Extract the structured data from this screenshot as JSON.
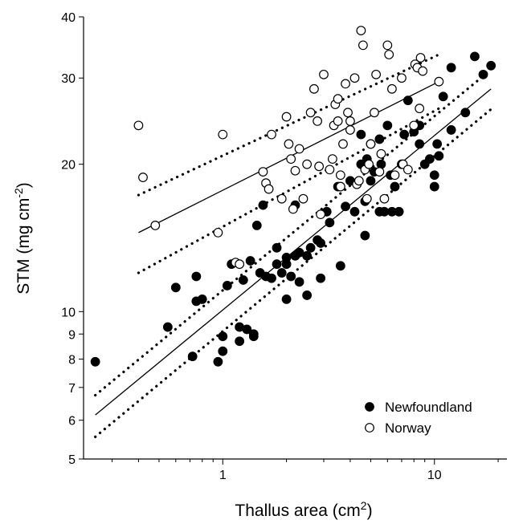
{
  "chart_data": {
    "type": "scatter",
    "title": "",
    "xlabel": {
      "base": "Thallus area (cm",
      "sup": "2",
      "tail": ")"
    },
    "ylabel": {
      "base": "STM (mg cm",
      "sup": "-2",
      "tail": ")"
    },
    "xscale": "log",
    "yscale": "log",
    "xlim": [
      0.22,
      22
    ],
    "ylim": [
      5,
      40
    ],
    "x_major_ticks": [
      {
        "value": 1,
        "label": "1"
      },
      {
        "value": 10,
        "label": "10"
      }
    ],
    "y_ticks": [
      {
        "value": 5,
        "label": "5"
      },
      {
        "value": 6,
        "label": "6"
      },
      {
        "value": 7,
        "label": "7"
      },
      {
        "value": 8,
        "label": "8"
      },
      {
        "value": 9,
        "label": "9"
      },
      {
        "value": 10,
        "label": "10"
      },
      {
        "value": 20,
        "label": "20"
      },
      {
        "value": 30,
        "label": "30"
      },
      {
        "value": 40,
        "label": "40"
      }
    ],
    "grid": false,
    "legend_position": "bottom-right",
    "series": [
      {
        "name": "Newfoundland",
        "marker": "filled-circle",
        "color": "#000000",
        "points": [
          [
            0.25,
            7.9
          ],
          [
            0.55,
            9.3
          ],
          [
            0.6,
            11.2
          ],
          [
            0.72,
            8.1
          ],
          [
            0.75,
            10.5
          ],
          [
            0.75,
            11.8
          ],
          [
            0.8,
            10.6
          ],
          [
            0.95,
            7.9
          ],
          [
            1.0,
            8.9
          ],
          [
            1.0,
            8.3
          ],
          [
            1.05,
            11.3
          ],
          [
            1.1,
            12.5
          ],
          [
            1.2,
            8.7
          ],
          [
            1.2,
            9.3
          ],
          [
            1.25,
            11.6
          ],
          [
            1.3,
            9.2
          ],
          [
            1.35,
            12.7
          ],
          [
            1.4,
            8.9
          ],
          [
            1.4,
            9.0
          ],
          [
            1.45,
            15.0
          ],
          [
            1.5,
            12.0
          ],
          [
            1.55,
            16.5
          ],
          [
            1.6,
            11.8
          ],
          [
            1.7,
            11.7
          ],
          [
            1.8,
            13.5
          ],
          [
            1.8,
            12.5
          ],
          [
            1.9,
            12.0
          ],
          [
            2.0,
            12.5
          ],
          [
            2.0,
            12.9
          ],
          [
            2.0,
            10.6
          ],
          [
            2.1,
            11.8
          ],
          [
            2.2,
            16.5
          ],
          [
            2.2,
            13.0
          ],
          [
            2.3,
            13.2
          ],
          [
            2.3,
            11.5
          ],
          [
            2.5,
            10.8
          ],
          [
            2.5,
            13.0
          ],
          [
            2.6,
            13.5
          ],
          [
            2.8,
            14.0
          ],
          [
            2.9,
            13.8
          ],
          [
            2.9,
            11.7
          ],
          [
            3.1,
            16.0
          ],
          [
            3.2,
            15.2
          ],
          [
            3.5,
            18.0
          ],
          [
            3.6,
            12.4
          ],
          [
            3.8,
            16.4
          ],
          [
            4.0,
            18.5
          ],
          [
            4.2,
            16.0
          ],
          [
            4.5,
            23.0
          ],
          [
            4.5,
            20.0
          ],
          [
            4.7,
            14.3
          ],
          [
            4.7,
            16.8
          ],
          [
            4.8,
            20.5
          ],
          [
            5.0,
            18.5
          ],
          [
            5.0,
            22.0
          ],
          [
            5.2,
            19.3
          ],
          [
            5.5,
            16.0
          ],
          [
            5.5,
            22.5
          ],
          [
            5.6,
            20.0
          ],
          [
            5.8,
            16.0
          ],
          [
            6.0,
            24.0
          ],
          [
            6.2,
            19.0
          ],
          [
            6.3,
            16.0
          ],
          [
            6.5,
            18.0
          ],
          [
            6.8,
            16.0
          ],
          [
            7.0,
            20.0
          ],
          [
            7.2,
            23.0
          ],
          [
            7.5,
            27.0
          ],
          [
            8.0,
            23.3
          ],
          [
            8.5,
            24.0
          ],
          [
            8.5,
            22.0
          ],
          [
            9.0,
            20.0
          ],
          [
            9.5,
            20.5
          ],
          [
            10.0,
            19.0
          ],
          [
            10.0,
            18.0
          ],
          [
            10.3,
            22.0
          ],
          [
            10.5,
            20.8
          ],
          [
            11.0,
            27.5
          ],
          [
            12.0,
            31.5
          ],
          [
            12.0,
            23.5
          ],
          [
            14.0,
            25.5
          ],
          [
            15.5,
            33.2
          ],
          [
            17.0,
            30.5
          ],
          [
            18.5,
            31.8
          ]
        ]
      },
      {
        "name": "Norway",
        "marker": "open-circle",
        "color": "#000000",
        "points": [
          [
            0.4,
            24.0
          ],
          [
            0.42,
            18.8
          ],
          [
            0.48,
            15.0
          ],
          [
            0.95,
            14.5
          ],
          [
            1.0,
            23.0
          ],
          [
            1.15,
            12.6
          ],
          [
            1.2,
            12.5
          ],
          [
            1.55,
            19.3
          ],
          [
            1.6,
            18.3
          ],
          [
            1.65,
            17.8
          ],
          [
            1.7,
            23.0
          ],
          [
            1.9,
            17.0
          ],
          [
            2.0,
            25.0
          ],
          [
            2.05,
            22.0
          ],
          [
            2.1,
            20.5
          ],
          [
            2.15,
            16.2
          ],
          [
            2.2,
            19.4
          ],
          [
            2.3,
            21.5
          ],
          [
            2.4,
            17.0
          ],
          [
            2.5,
            20.0
          ],
          [
            2.6,
            25.5
          ],
          [
            2.7,
            28.5
          ],
          [
            2.8,
            24.5
          ],
          [
            2.85,
            19.8
          ],
          [
            2.9,
            15.8
          ],
          [
            3.0,
            30.5
          ],
          [
            3.2,
            19.5
          ],
          [
            3.3,
            20.5
          ],
          [
            3.35,
            24.0
          ],
          [
            3.4,
            26.5
          ],
          [
            3.5,
            27.2
          ],
          [
            3.5,
            24.5
          ],
          [
            3.6,
            18.0
          ],
          [
            3.6,
            19.0
          ],
          [
            3.7,
            22.0
          ],
          [
            3.8,
            29.2
          ],
          [
            3.9,
            25.5
          ],
          [
            4.0,
            23.5
          ],
          [
            4.0,
            24.5
          ],
          [
            4.2,
            30.0
          ],
          [
            4.3,
            18.2
          ],
          [
            4.4,
            18.5
          ],
          [
            4.5,
            37.5
          ],
          [
            4.6,
            35.0
          ],
          [
            4.7,
            19.5
          ],
          [
            4.8,
            17.0
          ],
          [
            4.9,
            20.0
          ],
          [
            5.0,
            22.0
          ],
          [
            5.2,
            25.5
          ],
          [
            5.3,
            30.5
          ],
          [
            5.5,
            19.3
          ],
          [
            5.6,
            21.0
          ],
          [
            5.8,
            17.0
          ],
          [
            6.0,
            35.0
          ],
          [
            6.1,
            33.5
          ],
          [
            6.3,
            28.5
          ],
          [
            6.5,
            19.0
          ],
          [
            7.0,
            30.0
          ],
          [
            7.1,
            20.0
          ],
          [
            7.5,
            19.5
          ],
          [
            8.0,
            24.0
          ],
          [
            8.1,
            32.0
          ],
          [
            8.3,
            31.5
          ],
          [
            8.5,
            26.0
          ],
          [
            8.6,
            33.0
          ],
          [
            8.8,
            31.0
          ],
          [
            10.5,
            29.5
          ]
        ]
      }
    ],
    "fits": [
      {
        "series": "Newfoundland",
        "style": "solid",
        "x": [
          0.25,
          18.5
        ],
        "y": [
          6.15,
          28.5
        ]
      },
      {
        "series": "Newfoundland",
        "style": "dotted",
        "x": [
          0.25,
          18.5
        ],
        "y": [
          6.75,
          31.2
        ]
      },
      {
        "series": "Newfoundland",
        "style": "dotted",
        "x": [
          0.25,
          18.5
        ],
        "y": [
          5.55,
          25.9
        ]
      },
      {
        "series": "Norway",
        "style": "solid",
        "x": [
          0.4,
          10.5
        ],
        "y": [
          14.5,
          29.5
        ]
      },
      {
        "series": "Norway",
        "style": "dotted",
        "x": [
          0.4,
          10.5
        ],
        "y": [
          17.3,
          33.5
        ]
      },
      {
        "series": "Norway",
        "style": "dotted",
        "x": [
          0.4,
          10.5
        ],
        "y": [
          12.0,
          26.0
        ]
      }
    ]
  }
}
